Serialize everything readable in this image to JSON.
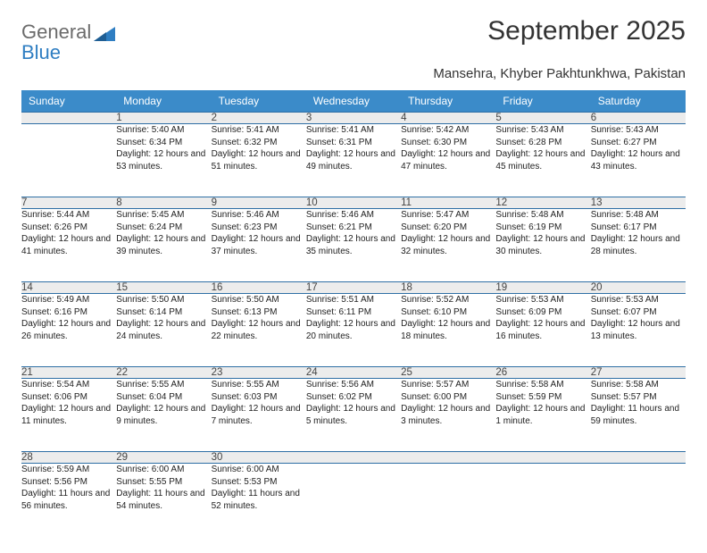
{
  "logo": {
    "word1": "General",
    "word2": "Blue",
    "text_color_gray": "#6b6b6b",
    "text_color_blue": "#2f7ec2",
    "shape_color": "#2f7ec2"
  },
  "title": "September 2025",
  "location": "Mansehra, Khyber Pakhtunkhwa, Pakistan",
  "colors": {
    "header_bg": "#3b8bc9",
    "header_text": "#ffffff",
    "daynum_bg": "#ececec",
    "border": "#2f6fa5",
    "body_text": "#222222"
  },
  "day_headers": [
    "Sunday",
    "Monday",
    "Tuesday",
    "Wednesday",
    "Thursday",
    "Friday",
    "Saturday"
  ],
  "weeks": [
    [
      null,
      {
        "n": "1",
        "sr": "Sunrise: 5:40 AM",
        "ss": "Sunset: 6:34 PM",
        "dl": "Daylight: 12 hours and 53 minutes."
      },
      {
        "n": "2",
        "sr": "Sunrise: 5:41 AM",
        "ss": "Sunset: 6:32 PM",
        "dl": "Daylight: 12 hours and 51 minutes."
      },
      {
        "n": "3",
        "sr": "Sunrise: 5:41 AM",
        "ss": "Sunset: 6:31 PM",
        "dl": "Daylight: 12 hours and 49 minutes."
      },
      {
        "n": "4",
        "sr": "Sunrise: 5:42 AM",
        "ss": "Sunset: 6:30 PM",
        "dl": "Daylight: 12 hours and 47 minutes."
      },
      {
        "n": "5",
        "sr": "Sunrise: 5:43 AM",
        "ss": "Sunset: 6:28 PM",
        "dl": "Daylight: 12 hours and 45 minutes."
      },
      {
        "n": "6",
        "sr": "Sunrise: 5:43 AM",
        "ss": "Sunset: 6:27 PM",
        "dl": "Daylight: 12 hours and 43 minutes."
      }
    ],
    [
      {
        "n": "7",
        "sr": "Sunrise: 5:44 AM",
        "ss": "Sunset: 6:26 PM",
        "dl": "Daylight: 12 hours and 41 minutes."
      },
      {
        "n": "8",
        "sr": "Sunrise: 5:45 AM",
        "ss": "Sunset: 6:24 PM",
        "dl": "Daylight: 12 hours and 39 minutes."
      },
      {
        "n": "9",
        "sr": "Sunrise: 5:46 AM",
        "ss": "Sunset: 6:23 PM",
        "dl": "Daylight: 12 hours and 37 minutes."
      },
      {
        "n": "10",
        "sr": "Sunrise: 5:46 AM",
        "ss": "Sunset: 6:21 PM",
        "dl": "Daylight: 12 hours and 35 minutes."
      },
      {
        "n": "11",
        "sr": "Sunrise: 5:47 AM",
        "ss": "Sunset: 6:20 PM",
        "dl": "Daylight: 12 hours and 32 minutes."
      },
      {
        "n": "12",
        "sr": "Sunrise: 5:48 AM",
        "ss": "Sunset: 6:19 PM",
        "dl": "Daylight: 12 hours and 30 minutes."
      },
      {
        "n": "13",
        "sr": "Sunrise: 5:48 AM",
        "ss": "Sunset: 6:17 PM",
        "dl": "Daylight: 12 hours and 28 minutes."
      }
    ],
    [
      {
        "n": "14",
        "sr": "Sunrise: 5:49 AM",
        "ss": "Sunset: 6:16 PM",
        "dl": "Daylight: 12 hours and 26 minutes."
      },
      {
        "n": "15",
        "sr": "Sunrise: 5:50 AM",
        "ss": "Sunset: 6:14 PM",
        "dl": "Daylight: 12 hours and 24 minutes."
      },
      {
        "n": "16",
        "sr": "Sunrise: 5:50 AM",
        "ss": "Sunset: 6:13 PM",
        "dl": "Daylight: 12 hours and 22 minutes."
      },
      {
        "n": "17",
        "sr": "Sunrise: 5:51 AM",
        "ss": "Sunset: 6:11 PM",
        "dl": "Daylight: 12 hours and 20 minutes."
      },
      {
        "n": "18",
        "sr": "Sunrise: 5:52 AM",
        "ss": "Sunset: 6:10 PM",
        "dl": "Daylight: 12 hours and 18 minutes."
      },
      {
        "n": "19",
        "sr": "Sunrise: 5:53 AM",
        "ss": "Sunset: 6:09 PM",
        "dl": "Daylight: 12 hours and 16 minutes."
      },
      {
        "n": "20",
        "sr": "Sunrise: 5:53 AM",
        "ss": "Sunset: 6:07 PM",
        "dl": "Daylight: 12 hours and 13 minutes."
      }
    ],
    [
      {
        "n": "21",
        "sr": "Sunrise: 5:54 AM",
        "ss": "Sunset: 6:06 PM",
        "dl": "Daylight: 12 hours and 11 minutes."
      },
      {
        "n": "22",
        "sr": "Sunrise: 5:55 AM",
        "ss": "Sunset: 6:04 PM",
        "dl": "Daylight: 12 hours and 9 minutes."
      },
      {
        "n": "23",
        "sr": "Sunrise: 5:55 AM",
        "ss": "Sunset: 6:03 PM",
        "dl": "Daylight: 12 hours and 7 minutes."
      },
      {
        "n": "24",
        "sr": "Sunrise: 5:56 AM",
        "ss": "Sunset: 6:02 PM",
        "dl": "Daylight: 12 hours and 5 minutes."
      },
      {
        "n": "25",
        "sr": "Sunrise: 5:57 AM",
        "ss": "Sunset: 6:00 PM",
        "dl": "Daylight: 12 hours and 3 minutes."
      },
      {
        "n": "26",
        "sr": "Sunrise: 5:58 AM",
        "ss": "Sunset: 5:59 PM",
        "dl": "Daylight: 12 hours and 1 minute."
      },
      {
        "n": "27",
        "sr": "Sunrise: 5:58 AM",
        "ss": "Sunset: 5:57 PM",
        "dl": "Daylight: 11 hours and 59 minutes."
      }
    ],
    [
      {
        "n": "28",
        "sr": "Sunrise: 5:59 AM",
        "ss": "Sunset: 5:56 PM",
        "dl": "Daylight: 11 hours and 56 minutes."
      },
      {
        "n": "29",
        "sr": "Sunrise: 6:00 AM",
        "ss": "Sunset: 5:55 PM",
        "dl": "Daylight: 11 hours and 54 minutes."
      },
      {
        "n": "30",
        "sr": "Sunrise: 6:00 AM",
        "ss": "Sunset: 5:53 PM",
        "dl": "Daylight: 11 hours and 52 minutes."
      },
      null,
      null,
      null,
      null
    ]
  ]
}
